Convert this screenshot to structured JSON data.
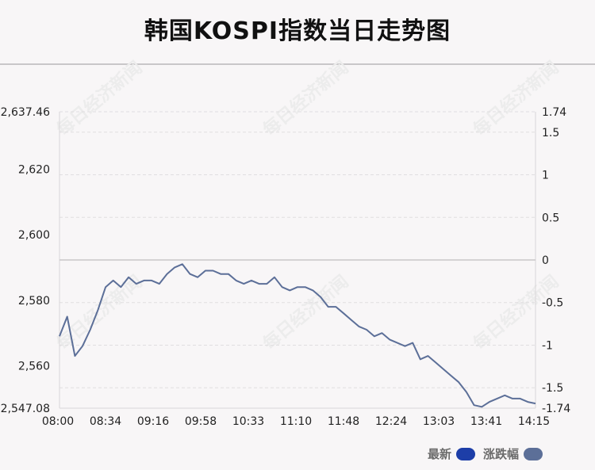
{
  "title": "韩国KOSPI指数当日走势图",
  "watermark": "每日经济新闻",
  "legend": [
    {
      "label": "最新",
      "color": "#1d3ea8"
    },
    {
      "label": "涨跌幅",
      "color": "#5c6f98"
    }
  ],
  "chart_data": {
    "type": "line",
    "title": "韩国KOSPI指数当日走势图",
    "x_tick_labels": [
      "08:00",
      "08:34",
      "09:16",
      "09:58",
      "10:33",
      "11:10",
      "11:48",
      "12:24",
      "13:03",
      "13:41",
      "14:15"
    ],
    "y_left_ticks": [
      "2,637.46",
      "2,620",
      "2,600",
      "2,580",
      "2,560",
      "2,547.08"
    ],
    "y_right_ticks": [
      "1.74",
      "1.5",
      "1",
      "0.5",
      "0",
      "-0.5",
      "-1",
      "-1.5",
      "-1.74"
    ],
    "ylim_left": [
      2547.08,
      2637.46
    ],
    "ylim_right": [
      -1.74,
      1.74
    ],
    "reference_line": 0,
    "grid": "horizontal dashed",
    "legend_position": "bottom-right",
    "series": [
      {
        "name": "最新",
        "color": "#5c6f98",
        "x": [
          "08:00",
          "08:06",
          "08:11",
          "08:17",
          "08:23",
          "08:28",
          "08:34",
          "08:40",
          "08:46",
          "08:52",
          "08:58",
          "09:04",
          "09:10",
          "09:16",
          "09:22",
          "09:28",
          "09:34",
          "09:40",
          "09:46",
          "09:52",
          "09:58",
          "10:04",
          "10:10",
          "10:16",
          "10:22",
          "10:28",
          "10:33",
          "10:40",
          "10:46",
          "10:52",
          "10:58",
          "11:04",
          "11:10",
          "11:16",
          "11:22",
          "11:28",
          "11:34",
          "11:40",
          "11:48",
          "11:54",
          "12:00",
          "12:06",
          "12:12",
          "12:18",
          "12:24",
          "12:30",
          "12:36",
          "12:42",
          "12:48",
          "12:54",
          "13:03",
          "13:09",
          "13:15",
          "13:21",
          "13:27",
          "13:33",
          "13:41",
          "13:46",
          "13:52",
          "13:58",
          "14:04",
          "14:10",
          "14:15"
        ],
        "values": [
          2569,
          2575,
          2563,
          2566,
          2571,
          2577,
          2584,
          2586,
          2584,
          2587,
          2585,
          2586,
          2586,
          2585,
          2588,
          2590,
          2591,
          2588,
          2587,
          2589,
          2589,
          2588,
          2588,
          2586,
          2585,
          2586,
          2585,
          2585,
          2587,
          2584,
          2583,
          2584,
          2584,
          2583,
          2581,
          2578,
          2578,
          2576,
          2574,
          2572,
          2571,
          2569,
          2570,
          2568,
          2567,
          2566,
          2567,
          2562,
          2563,
          2561,
          2559,
          2557,
          2555,
          2552,
          2548,
          2547.5,
          2549,
          2550,
          2551,
          2550,
          2550,
          2549,
          2548.5
        ]
      }
    ]
  }
}
